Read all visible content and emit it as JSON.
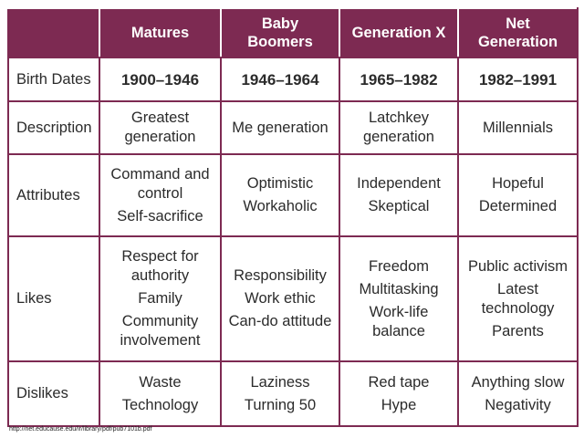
{
  "table": {
    "columns": [
      "Matures",
      "Baby Boomers",
      "Generation X",
      "Net Generation"
    ],
    "rows": [
      {
        "label": "Birth Dates",
        "cells": [
          [
            "1900–1946"
          ],
          [
            "1946–1964"
          ],
          [
            "1965–1982"
          ],
          [
            "1982–1991"
          ]
        ]
      },
      {
        "label": "Description",
        "cells": [
          [
            "Greatest generation"
          ],
          [
            "Me generation"
          ],
          [
            "Latchkey generation"
          ],
          [
            "Millennials"
          ]
        ]
      },
      {
        "label": "Attributes",
        "cells": [
          [
            "Command and control",
            "Self-sacrifice"
          ],
          [
            "Optimistic",
            "Workaholic"
          ],
          [
            "Independent",
            "Skeptical"
          ],
          [
            "Hopeful",
            "Determined"
          ]
        ]
      },
      {
        "label": "Likes",
        "cells": [
          [
            "Respect for authority",
            "Family",
            "Community involvement"
          ],
          [
            "Responsibility",
            "Work ethic",
            "Can-do attitude"
          ],
          [
            "Freedom",
            "Multitasking",
            "Work-life balance"
          ],
          [
            "Public activism",
            "Latest technology",
            "Parents"
          ]
        ]
      },
      {
        "label": "Dislikes",
        "cells": [
          [
            "Waste",
            "Technology"
          ],
          [
            "Laziness",
            "Turning 50"
          ],
          [
            "Red tape",
            "Hype"
          ],
          [
            "Anything slow",
            "Negativity"
          ]
        ]
      }
    ]
  },
  "source": "http://net.educause.edu/ir/library/pdf/pub7101b.pdf"
}
